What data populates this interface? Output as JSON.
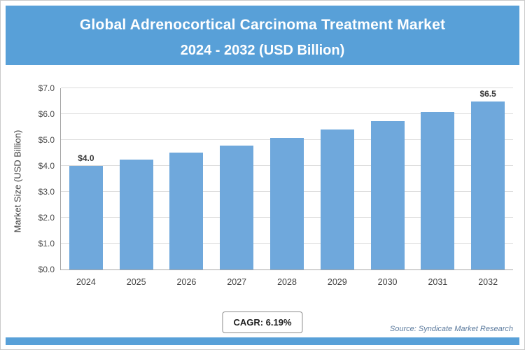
{
  "header": {
    "title_line1": "Global Adrenocortical Carcinoma Treatment Market",
    "title_line2": "2024 - 2032 (USD Billion)"
  },
  "chart_data": {
    "type": "bar",
    "title": "Global Adrenocortical Carcinoma Treatment Market 2024 - 2032 (USD Billion)",
    "categories": [
      "2024",
      "2025",
      "2026",
      "2027",
      "2028",
      "2029",
      "2030",
      "2031",
      "2032"
    ],
    "values": [
      4.0,
      4.25,
      4.51,
      4.79,
      5.09,
      5.4,
      5.74,
      6.09,
      6.5
    ],
    "bar_labels": [
      "$4.0",
      "",
      "",
      "",
      "",
      "",
      "",
      "",
      "$6.5"
    ],
    "xlabel": "",
    "ylabel": "Market Size (USD Billion)",
    "ylim": [
      0,
      7
    ],
    "y_ticks": [
      {
        "value": 0,
        "label": "$0.0"
      },
      {
        "value": 1,
        "label": "$1.0"
      },
      {
        "value": 2,
        "label": "$2.0"
      },
      {
        "value": 3,
        "label": "$3.0"
      },
      {
        "value": 4,
        "label": "$4.0"
      },
      {
        "value": 5,
        "label": "$5.0"
      },
      {
        "value": 6,
        "label": "$6.0"
      },
      {
        "value": 7,
        "label": "$7.0"
      }
    ],
    "grid": "horizontal",
    "legend": "none",
    "bar_color": "#6fa8dc"
  },
  "footer": {
    "cagr_label": "CAGR: 6.19%",
    "source": "Source: Syndicate Market Research"
  },
  "colors": {
    "header_bg": "#58a0d8",
    "footer_bar": "#58a0d8",
    "bar_fill": "#6fa8dc",
    "gridline": "#dcdcdc"
  }
}
